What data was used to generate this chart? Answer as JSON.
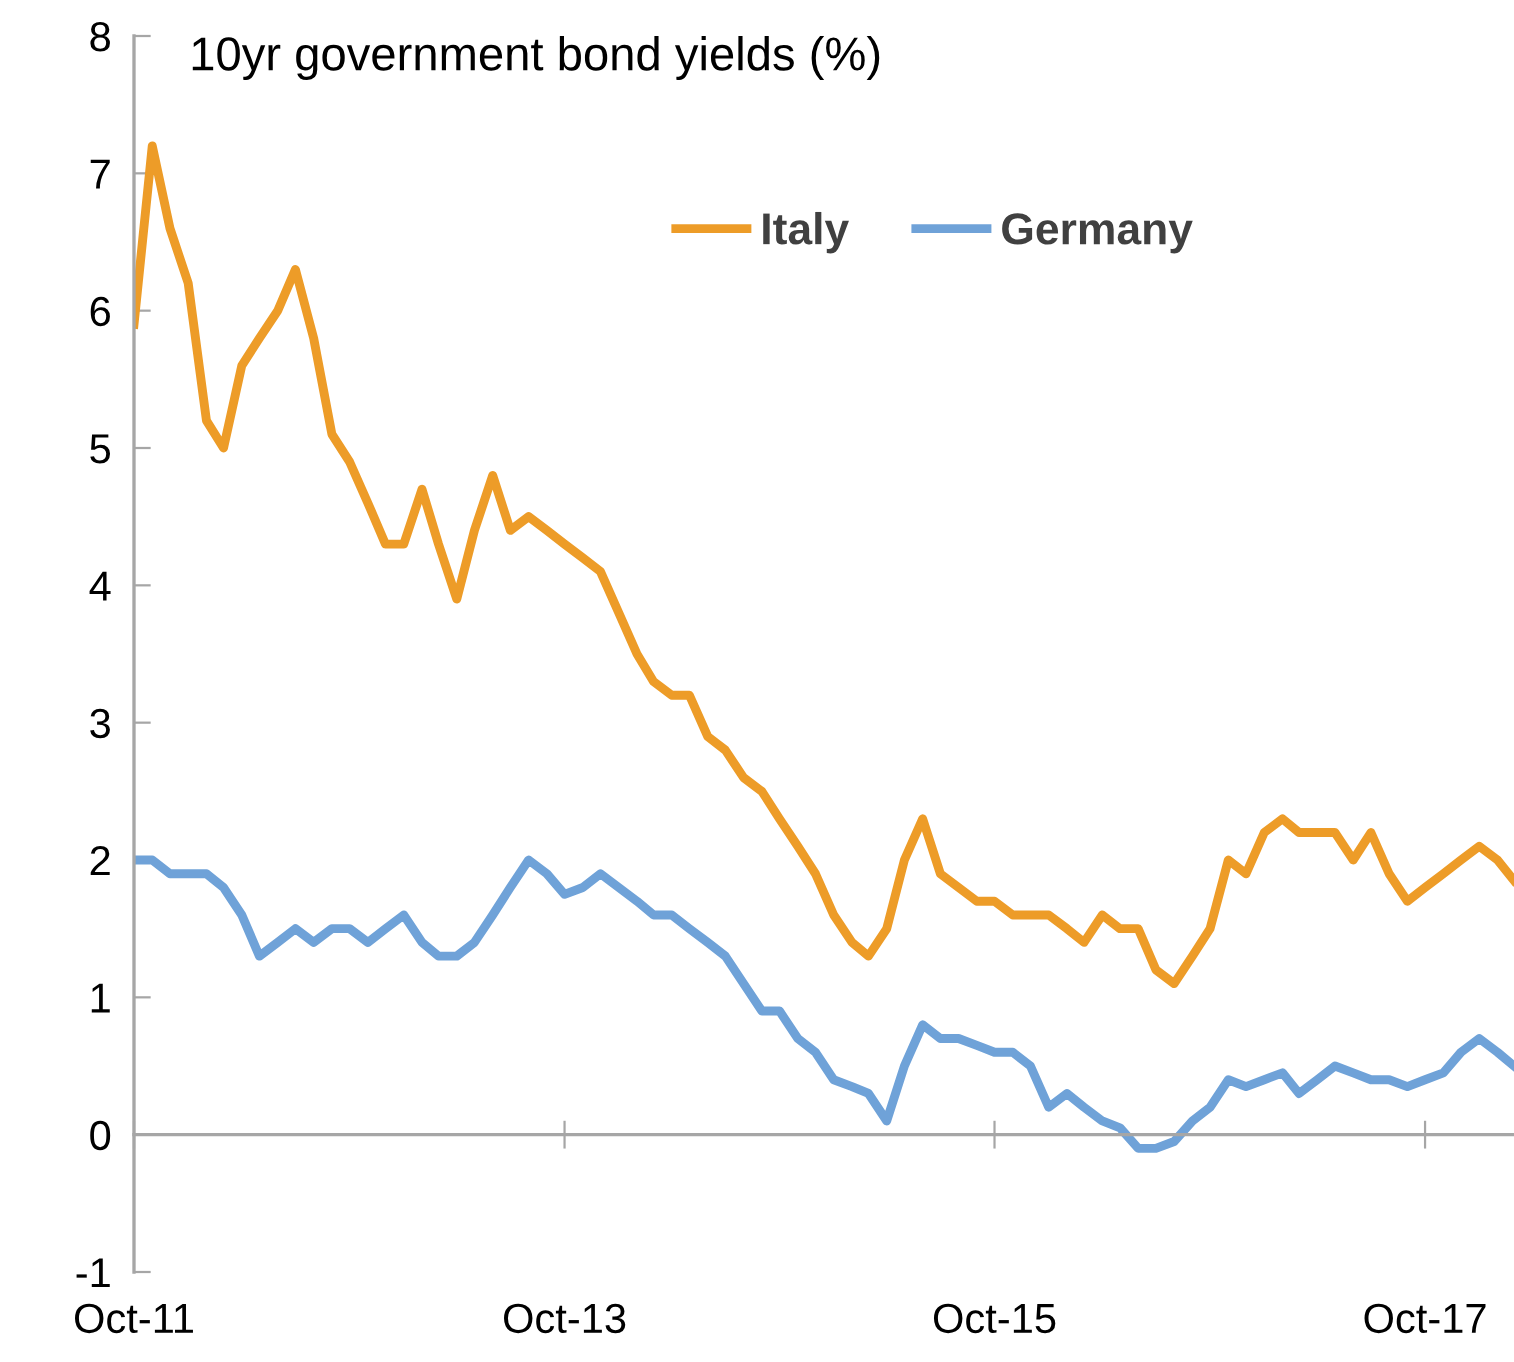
{
  "chart_data": {
    "type": "line",
    "title": "10yr government bond yields (%)",
    "x": [
      "2011-10",
      "2011-11",
      "2011-12",
      "2012-01",
      "2012-02",
      "2012-03",
      "2012-04",
      "2012-05",
      "2012-06",
      "2012-07",
      "2012-08",
      "2012-09",
      "2012-10",
      "2012-11",
      "2012-12",
      "2013-01",
      "2013-02",
      "2013-03",
      "2013-04",
      "2013-05",
      "2013-06",
      "2013-07",
      "2013-08",
      "2013-09",
      "2013-10",
      "2013-11",
      "2013-12",
      "2014-01",
      "2014-02",
      "2014-03",
      "2014-04",
      "2014-05",
      "2014-06",
      "2014-07",
      "2014-08",
      "2014-09",
      "2014-10",
      "2014-11",
      "2014-12",
      "2015-01",
      "2015-02",
      "2015-03",
      "2015-04",
      "2015-05",
      "2015-06",
      "2015-07",
      "2015-08",
      "2015-09",
      "2015-10",
      "2015-11",
      "2015-12",
      "2016-01",
      "2016-02",
      "2016-03",
      "2016-04",
      "2016-05",
      "2016-06",
      "2016-07",
      "2016-08",
      "2016-09",
      "2016-10",
      "2016-11",
      "2016-12",
      "2017-01",
      "2017-02",
      "2017-03",
      "2017-04",
      "2017-05",
      "2017-06",
      "2017-07",
      "2017-08",
      "2017-09",
      "2017-10",
      "2017-11",
      "2017-12",
      "2018-01",
      "2018-02",
      "2018-03"
    ],
    "series": [
      {
        "name": "Italy",
        "color": "#ed9c28",
        "values": [
          5.9,
          7.2,
          6.6,
          6.2,
          5.2,
          5.0,
          5.6,
          5.8,
          6.0,
          6.3,
          5.8,
          5.1,
          4.9,
          4.6,
          4.3,
          4.3,
          4.7,
          4.3,
          3.9,
          4.4,
          4.8,
          4.4,
          4.5,
          4.4,
          4.3,
          4.2,
          4.1,
          3.8,
          3.5,
          3.3,
          3.2,
          3.2,
          2.9,
          2.8,
          2.6,
          2.5,
          2.3,
          2.1,
          1.9,
          1.6,
          1.4,
          1.3,
          1.5,
          2.0,
          2.3,
          1.9,
          1.8,
          1.7,
          1.7,
          1.6,
          1.6,
          1.6,
          1.5,
          1.4,
          1.6,
          1.5,
          1.5,
          1.2,
          1.1,
          1.3,
          1.5,
          2.0,
          1.9,
          2.2,
          2.3,
          2.2,
          2.2,
          2.2,
          2.0,
          2.2,
          1.9,
          1.7,
          1.8,
          1.9,
          2.0,
          2.1,
          2.0,
          1.85
        ]
      },
      {
        "name": "Germany",
        "color": "#6fa2d8",
        "values": [
          2.0,
          2.0,
          1.9,
          1.9,
          1.9,
          1.8,
          1.6,
          1.3,
          1.4,
          1.5,
          1.4,
          1.5,
          1.5,
          1.4,
          1.5,
          1.6,
          1.4,
          1.3,
          1.3,
          1.4,
          1.6,
          1.8,
          2.0,
          1.9,
          1.75,
          1.8,
          1.9,
          1.8,
          1.7,
          1.6,
          1.6,
          1.5,
          1.4,
          1.3,
          1.1,
          0.9,
          0.9,
          0.7,
          0.6,
          0.4,
          0.35,
          0.3,
          0.1,
          0.5,
          0.8,
          0.7,
          0.7,
          0.65,
          0.6,
          0.6,
          0.5,
          0.2,
          0.3,
          0.2,
          0.1,
          0.05,
          -0.1,
          -0.1,
          -0.05,
          0.1,
          0.2,
          0.4,
          0.35,
          0.4,
          0.45,
          0.3,
          0.4,
          0.5,
          0.45,
          0.4,
          0.4,
          0.35,
          0.4,
          0.45,
          0.6,
          0.7,
          0.6,
          0.5
        ]
      }
    ],
    "xlim": [
      "2011-10",
      "2018-03"
    ],
    "xticks": [
      {
        "value": "2011-10",
        "label": "Oct-11"
      },
      {
        "value": "2013-10",
        "label": "Oct-13"
      },
      {
        "value": "2015-10",
        "label": "Oct-15"
      },
      {
        "value": "2017-10",
        "label": "Oct-17"
      }
    ],
    "ylim": [
      -1,
      8
    ],
    "yticks": [
      -1,
      0,
      1,
      2,
      3,
      4,
      5,
      6,
      7,
      8
    ],
    "legend": "top right",
    "marker": "none",
    "line_style": "solid"
  }
}
